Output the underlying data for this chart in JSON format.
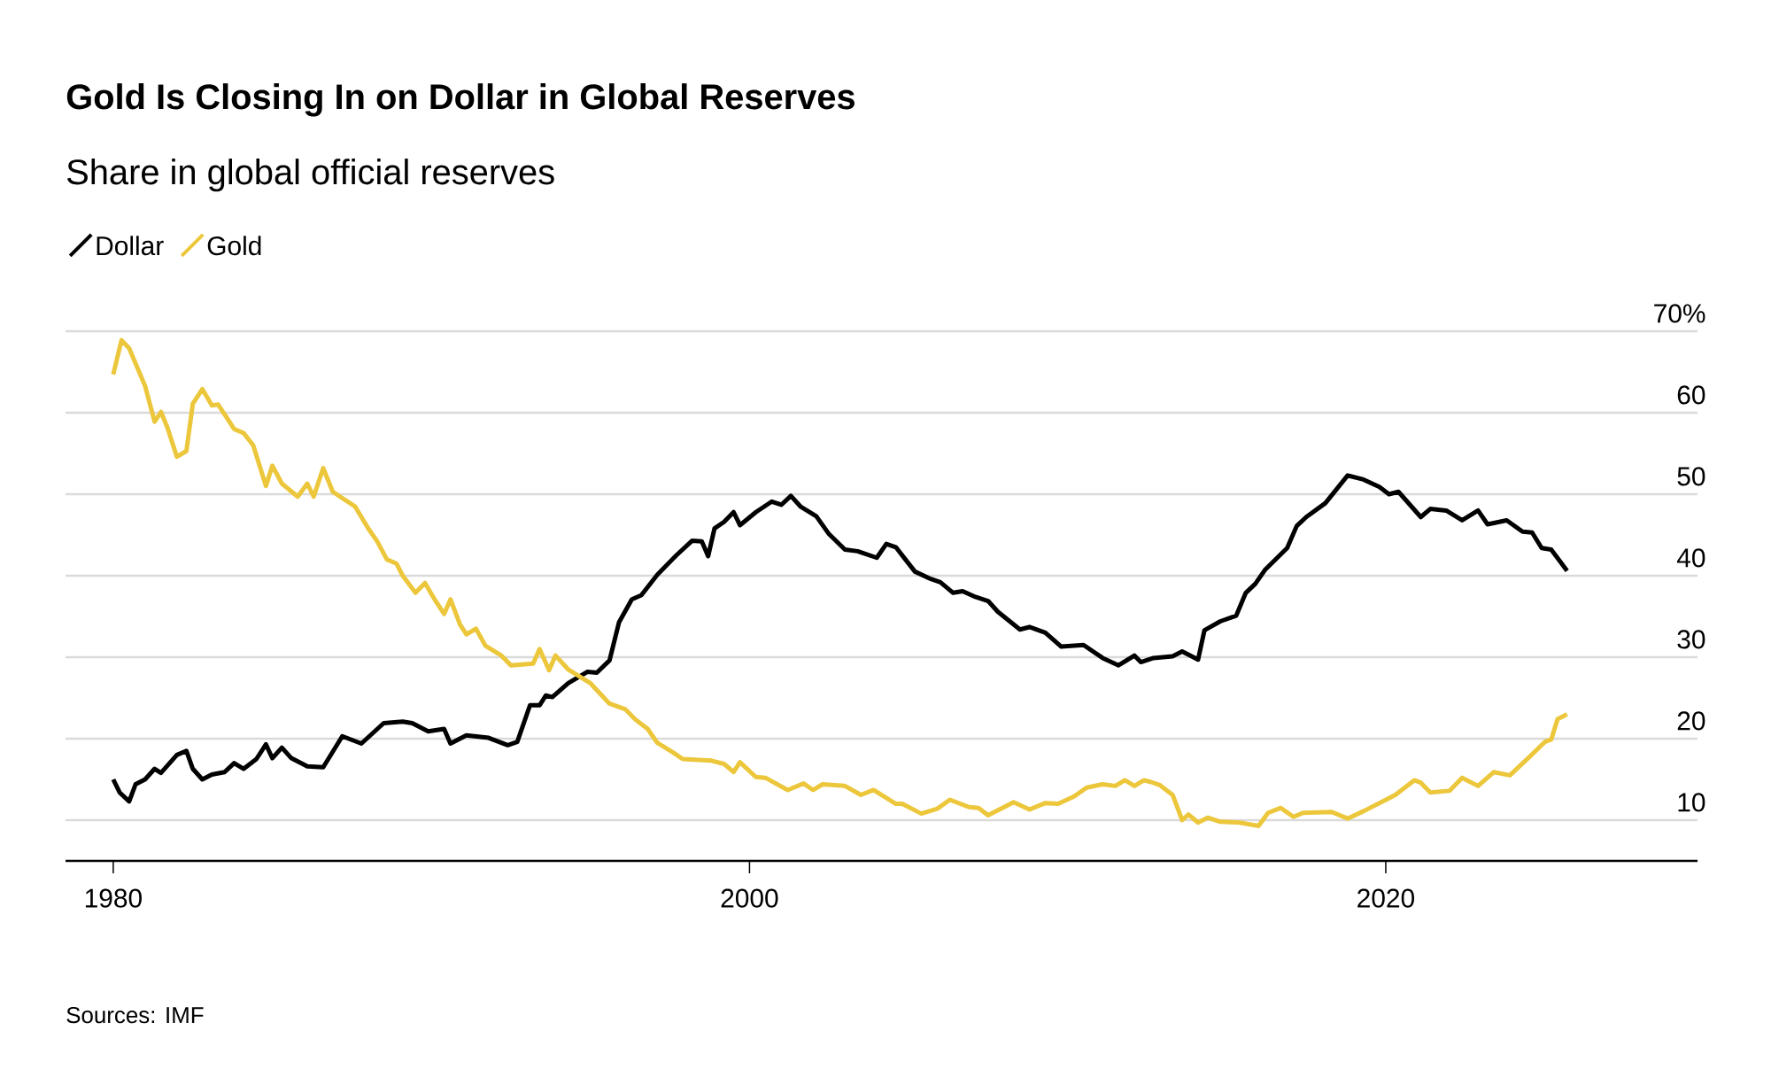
{
  "chart_data": {
    "type": "line",
    "title": "Gold Is Closing In on Dollar in Global Reserves",
    "subtitle": "Share in global official reserves",
    "annotations": [
      "Sources: IMF"
    ],
    "xlim": [
      1978.5,
      2029.8
    ],
    "xticks": [
      1980,
      2000,
      2020
    ],
    "ylim": [
      5,
      70
    ],
    "yticks": [
      10,
      20,
      30,
      40,
      50,
      60,
      {
        "value": 70,
        "label": "70%"
      }
    ],
    "grid": "y",
    "legend": "top left",
    "series": [
      {
        "name": "Dollar",
        "color": "#000000",
        "x": [
          1980.0,
          1980.2,
          1980.5,
          1980.7,
          1981.0,
          1981.3,
          1981.5,
          1982.0,
          1982.3,
          1982.5,
          1982.8,
          1983.1,
          1983.5,
          1983.8,
          1984.1,
          1984.5,
          1984.8,
          1985.0,
          1985.3,
          1985.6,
          1986.1,
          1986.6,
          1987.2,
          1987.8,
          1988.5,
          1989.1,
          1989.4,
          1989.9,
          1990.4,
          1990.6,
          1991.1,
          1991.8,
          1992.4,
          1992.7,
          1993.1,
          1993.4,
          1993.6,
          1993.8,
          1994.3,
          1994.9,
          1995.2,
          1995.6,
          1995.9,
          1996.3,
          1996.6,
          1997.1,
          1997.7,
          1998.2,
          1998.5,
          1998.7,
          1998.9,
          1999.2,
          1999.5,
          1999.7,
          2000.2,
          2000.7,
          2001.0,
          2001.3,
          2001.6,
          2002.1,
          2002.5,
          2003.0,
          2003.4,
          2004.0,
          2004.3,
          2004.6,
          2005.2,
          2005.7,
          2006.0,
          2006.4,
          2006.7,
          2007.1,
          2007.5,
          2007.8,
          2008.5,
          2008.8,
          2009.3,
          2009.8,
          2010.5,
          2011.1,
          2011.6,
          2012.1,
          2012.3,
          2012.7,
          2013.3,
          2013.6,
          2014.1,
          2014.3,
          2014.8,
          2015.3,
          2015.6,
          2015.9,
          2016.2,
          2016.9,
          2017.2,
          2017.5,
          2018.1,
          2018.8,
          2019.3,
          2019.8,
          2020.1,
          2020.4,
          2021.1,
          2021.4,
          2021.9,
          2022.4,
          2022.9,
          2023.2,
          2023.8,
          2024.3,
          2024.6,
          2024.9,
          2025.2,
          2025.7
        ],
        "values": [
          15.0,
          13.4,
          12.3,
          14.4,
          15.0,
          16.3,
          15.8,
          18.0,
          18.5,
          16.3,
          15.0,
          15.6,
          15.9,
          17.0,
          16.3,
          17.5,
          19.3,
          17.6,
          18.9,
          17.6,
          16.6,
          16.5,
          20.3,
          19.4,
          21.9,
          22.1,
          21.9,
          20.9,
          21.2,
          19.4,
          20.4,
          20.1,
          19.2,
          19.6,
          24.1,
          24.1,
          25.3,
          25.1,
          26.8,
          28.2,
          28.1,
          29.6,
          34.3,
          37.1,
          37.6,
          40.1,
          42.5,
          44.3,
          44.2,
          42.4,
          45.8,
          46.6,
          47.8,
          46.2,
          47.8,
          49.1,
          48.7,
          49.8,
          48.5,
          47.3,
          45.1,
          43.2,
          43.0,
          42.2,
          43.9,
          43.5,
          40.5,
          39.6,
          39.2,
          37.9,
          38.1,
          37.4,
          36.9,
          35.6,
          33.4,
          33.7,
          33.0,
          31.3,
          31.5,
          29.9,
          29.0,
          30.2,
          29.4,
          29.9,
          30.1,
          30.7,
          29.7,
          33.3,
          34.4,
          35.1,
          37.9,
          39.0,
          40.7,
          43.4,
          46.1,
          47.2,
          48.9,
          52.3,
          51.8,
          50.9,
          50.0,
          50.3,
          47.2,
          48.2,
          48.0,
          46.8,
          48.0,
          46.3,
          46.8,
          45.4,
          45.3,
          43.4,
          43.2,
          40.6
        ]
      },
      {
        "name": "Gold",
        "color": "#ecc73b",
        "x": [
          1980.0,
          1980.26,
          1980.5,
          1981.0,
          1981.3,
          1981.5,
          1981.7,
          1982.0,
          1982.3,
          1982.5,
          1982.8,
          1983.1,
          1983.3,
          1983.8,
          1984.1,
          1984.4,
          1984.8,
          1985.0,
          1985.3,
          1985.8,
          1986.1,
          1986.3,
          1986.6,
          1986.9,
          1987.6,
          1988.0,
          1988.3,
          1988.6,
          1988.9,
          1989.1,
          1989.5,
          1989.8,
          1990.1,
          1990.4,
          1990.6,
          1990.9,
          1991.1,
          1991.4,
          1991.7,
          1992.2,
          1992.5,
          1993.2,
          1993.4,
          1993.7,
          1993.9,
          1994.3,
          1995.0,
          1995.6,
          1996.1,
          1996.4,
          1996.8,
          1997.1,
          1997.6,
          1997.9,
          1998.8,
          1999.2,
          1999.5,
          1999.7,
          2000.2,
          2000.5,
          2001.2,
          2001.7,
          2002.0,
          2002.3,
          2003.0,
          2003.5,
          2003.9,
          2004.6,
          2004.8,
          2005.4,
          2005.9,
          2006.3,
          2006.9,
          2007.2,
          2007.5,
          2008.3,
          2008.8,
          2009.3,
          2009.7,
          2010.2,
          2010.6,
          2011.1,
          2011.5,
          2011.8,
          2012.1,
          2012.4,
          2012.6,
          2012.9,
          2013.3,
          2013.6,
          2013.8,
          2014.1,
          2014.4,
          2014.8,
          2015.4,
          2016.0,
          2016.3,
          2016.7,
          2017.1,
          2017.4,
          2018.3,
          2018.8,
          2019.3,
          2020.1,
          2020.3,
          2020.9,
          2021.1,
          2021.4,
          2022.0,
          2022.4,
          2022.9,
          2023.4,
          2023.9,
          2024.5,
          2025.0,
          2025.2,
          2025.4,
          2025.7
        ],
        "values": [
          64.7,
          68.9,
          67.9,
          63.3,
          58.9,
          60.1,
          58.2,
          54.6,
          55.3,
          61.1,
          62.9,
          60.9,
          61.0,
          58.0,
          57.5,
          56.0,
          51.0,
          53.5,
          51.3,
          49.7,
          51.3,
          49.7,
          53.2,
          50.3,
          48.5,
          45.9,
          44.2,
          42.0,
          41.5,
          40.0,
          37.9,
          39.1,
          37.1,
          35.3,
          37.1,
          34.0,
          32.8,
          33.5,
          31.4,
          30.2,
          29.0,
          29.2,
          31.0,
          28.4,
          30.2,
          28.5,
          26.8,
          24.3,
          23.6,
          22.4,
          21.2,
          19.5,
          18.3,
          17.5,
          17.3,
          16.9,
          15.9,
          17.1,
          15.3,
          15.2,
          13.7,
          14.5,
          13.7,
          14.4,
          14.2,
          13.1,
          13.7,
          12.0,
          12.0,
          10.8,
          11.4,
          12.5,
          11.6,
          11.5,
          10.6,
          12.2,
          11.3,
          12.1,
          12.0,
          12.9,
          14.0,
          14.4,
          14.2,
          14.9,
          14.2,
          14.9,
          14.7,
          14.3,
          13.1,
          10.0,
          10.7,
          9.7,
          10.3,
          9.8,
          9.7,
          9.3,
          10.9,
          11.5,
          10.4,
          10.9,
          11.0,
          10.2,
          11.1,
          12.7,
          13.1,
          14.9,
          14.6,
          13.4,
          13.6,
          15.2,
          14.2,
          15.9,
          15.5,
          17.7,
          19.6,
          19.9,
          22.4,
          23.0
        ]
      }
    ]
  }
}
